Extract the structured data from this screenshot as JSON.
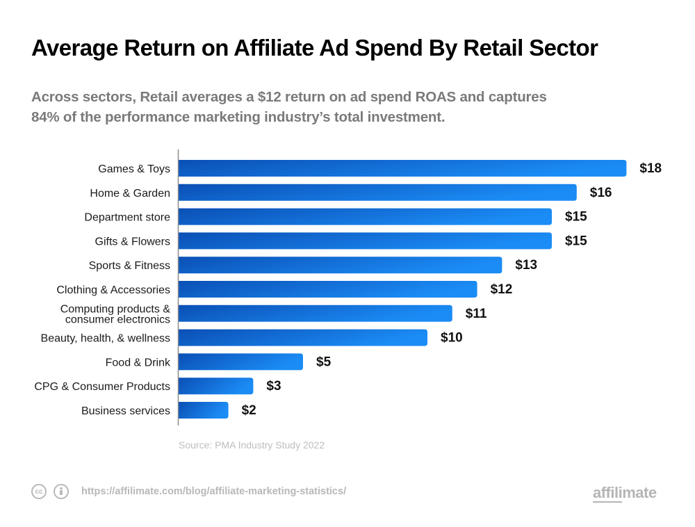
{
  "title": "Average Return on Affiliate Ad Spend By Retail Sector",
  "subtitle_lines": [
    "Across sectors, Retail averages a $12 return on ad spend ROAS and captures",
    "84% of the performance marketing industry’s total investment."
  ],
  "source": "Source: PMA Industry Study 2022",
  "footer": {
    "cc_icon": "creative-commons-icon",
    "cc_text": "cc",
    "attribution_icon": "attribution-person-icon",
    "url": "https://affilimate.com/blog/affiliate-marketing-statistics/"
  },
  "logo": {
    "underlined": "affili",
    "rest": "mate"
  },
  "colors": {
    "bar_dark": "#0a4fb5",
    "bar_light": "#1b8cf5",
    "axis": "#8a8a8a"
  },
  "chart_data": {
    "type": "bar",
    "orientation": "horizontal",
    "title": "Average Return on Affiliate Ad Spend By Retail Sector",
    "xlabel": "",
    "ylabel": "",
    "value_prefix": "$",
    "xlim": [
      0,
      18
    ],
    "grid": false,
    "legend": "none",
    "categories": [
      [
        "Games & Toys"
      ],
      [
        "Home & Garden"
      ],
      [
        "Department store"
      ],
      [
        "Gifts & Flowers"
      ],
      [
        "Sports & Fitness"
      ],
      [
        "Clothing & Accessories"
      ],
      [
        "Computing products &",
        "consumer electronics"
      ],
      [
        "Beauty, health, & wellness"
      ],
      [
        "Food & Drink"
      ],
      [
        "CPG & Consumer Products"
      ],
      [
        "Business services"
      ]
    ],
    "values": [
      18,
      16,
      15,
      15,
      13,
      12,
      11,
      10,
      5,
      3,
      2
    ],
    "data_labels": [
      "$18",
      "$16",
      "$15",
      "$15",
      "$13",
      "$12",
      "$11",
      "$10",
      "$5",
      "$3",
      "$2"
    ]
  }
}
